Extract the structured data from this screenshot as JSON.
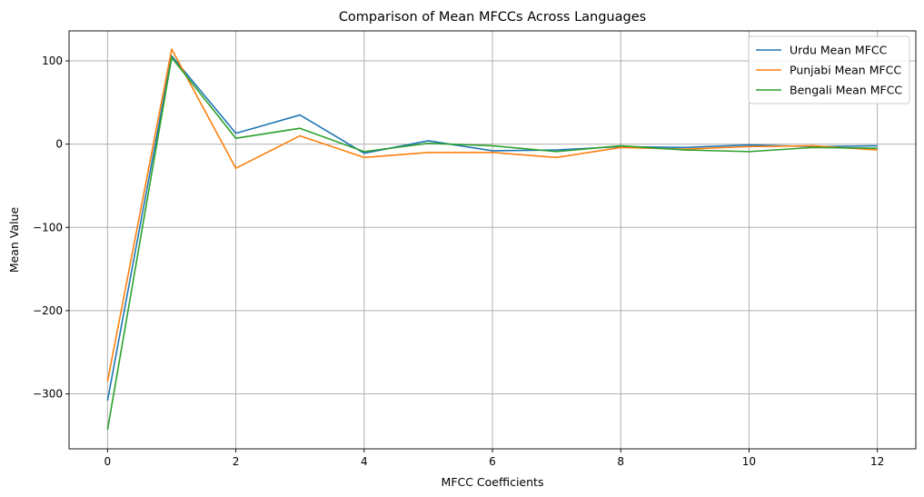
{
  "chart_data": {
    "type": "line",
    "title": "Comparison of Mean MFCCs Across Languages",
    "xlabel": "MFCC Coefficients",
    "ylabel": "Mean Value",
    "xlim": [
      -0.6,
      12.6
    ],
    "ylim": [
      -366,
      136
    ],
    "xticks": [
      0,
      2,
      4,
      6,
      8,
      10,
      12
    ],
    "xtick_labels": [
      "0",
      "2",
      "4",
      "6",
      "8",
      "10",
      "12"
    ],
    "yticks": [
      -300,
      -200,
      -100,
      0,
      100
    ],
    "ytick_labels": [
      "−300",
      "−200",
      "−100",
      "0",
      "100"
    ],
    "grid": true,
    "legend_position": "upper right",
    "x": [
      0,
      1,
      2,
      3,
      4,
      5,
      6,
      7,
      8,
      9,
      10,
      11,
      12
    ],
    "series": [
      {
        "name": "Urdu Mean MFCC",
        "color": "#1f77b4",
        "values": [
          -308,
          106,
          13,
          35,
          -11,
          4,
          -8,
          -7,
          -3,
          -4,
          -1,
          -3,
          -2
        ]
      },
      {
        "name": "Punjabi Mean MFCC",
        "color": "#ff7f0e",
        "values": [
          -285,
          114,
          -29,
          10,
          -16,
          -10,
          -10,
          -16,
          -4,
          -6,
          -3,
          -2,
          -7
        ]
      },
      {
        "name": "Bengali Mean MFCC",
        "color": "#2ca02c",
        "values": [
          -343,
          104,
          7,
          19,
          -9,
          1,
          -2,
          -9,
          -2,
          -7,
          -9,
          -4,
          -5
        ]
      }
    ]
  }
}
